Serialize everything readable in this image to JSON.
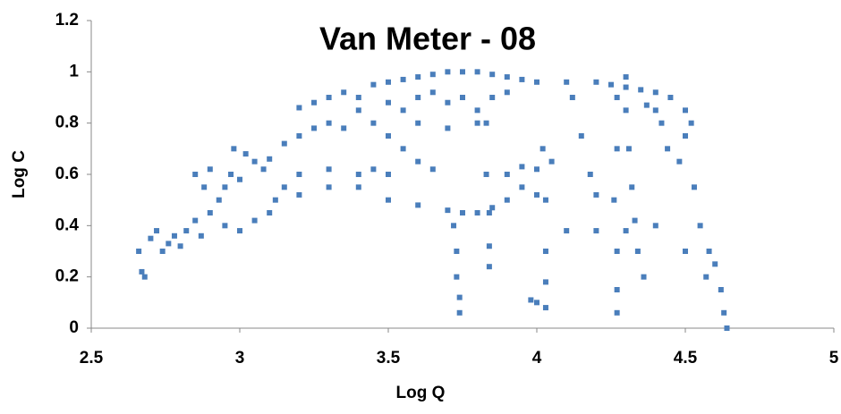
{
  "chart_data": {
    "type": "scatter",
    "title": "Van Meter - 08",
    "x_label": "Log Q",
    "y_label": "Log C",
    "color": "#4a7ebb",
    "x": [
      2.66,
      2.67,
      2.68,
      2.7,
      2.72,
      2.74,
      2.76,
      2.78,
      2.8,
      2.82,
      2.85,
      2.87,
      2.9,
      2.88,
      2.85,
      2.9,
      2.93,
      2.95,
      2.97,
      3.0,
      2.98,
      3.02,
      3.05,
      3.08,
      3.1,
      2.95,
      3.0,
      3.05,
      3.1,
      3.12,
      3.15,
      3.2,
      3.25,
      3.3,
      3.2,
      3.25,
      3.3,
      3.35,
      3.4,
      3.45,
      3.5,
      3.55,
      3.6,
      3.65,
      3.7,
      3.75,
      3.8,
      3.85,
      3.9,
      3.95,
      4.0,
      4.1,
      4.2,
      4.25,
      4.3,
      4.35,
      4.4,
      4.45,
      4.5,
      4.52,
      4.5,
      3.4,
      3.5,
      3.55,
      3.6,
      3.65,
      3.7,
      3.75,
      3.8,
      3.85,
      3.9,
      3.6,
      3.7,
      3.8,
      3.5,
      3.45,
      3.35,
      3.55,
      3.45,
      3.5,
      3.6,
      3.65,
      3.15,
      3.2,
      3.3,
      3.4,
      3.5,
      3.6,
      3.7,
      3.75,
      3.8,
      3.85,
      3.9,
      3.95,
      4.0,
      3.2,
      3.3,
      3.4,
      4.1,
      4.2,
      4.3,
      4.4,
      4.0,
      4.05,
      3.95,
      3.9,
      3.72,
      3.73,
      3.73,
      3.74,
      3.74,
      3.83,
      3.83,
      3.84,
      3.84,
      3.84,
      4.02,
      4.03,
      4.03,
      4.03,
      4.03,
      3.98,
      4.0,
      4.27,
      4.27,
      4.26,
      4.27,
      4.27,
      4.27,
      4.3,
      4.3,
      4.31,
      4.32,
      4.33,
      4.34,
      4.36,
      4.12,
      4.15,
      4.18,
      4.2,
      4.6,
      4.62,
      4.63,
      4.64,
      4.58,
      4.55,
      4.53,
      4.48,
      4.44,
      4.42,
      4.4,
      4.37,
      4.57,
      4.5
    ],
    "values": [
      0.3,
      0.22,
      0.2,
      0.35,
      0.38,
      0.3,
      0.33,
      0.36,
      0.32,
      0.38,
      0.42,
      0.36,
      0.45,
      0.55,
      0.6,
      0.62,
      0.5,
      0.55,
      0.6,
      0.58,
      0.7,
      0.68,
      0.65,
      0.62,
      0.66,
      0.4,
      0.38,
      0.42,
      0.45,
      0.5,
      0.72,
      0.75,
      0.78,
      0.8,
      0.86,
      0.88,
      0.9,
      0.92,
      0.9,
      0.95,
      0.96,
      0.97,
      0.98,
      0.99,
      1.0,
      1.0,
      1.0,
      0.99,
      0.98,
      0.97,
      0.96,
      0.96,
      0.96,
      0.95,
      0.94,
      0.93,
      0.92,
      0.9,
      0.85,
      0.8,
      0.75,
      0.85,
      0.88,
      0.85,
      0.9,
      0.92,
      0.88,
      0.9,
      0.85,
      0.9,
      0.92,
      0.8,
      0.78,
      0.8,
      0.75,
      0.8,
      0.78,
      0.7,
      0.62,
      0.6,
      0.65,
      0.62,
      0.55,
      0.52,
      0.55,
      0.55,
      0.5,
      0.48,
      0.46,
      0.45,
      0.45,
      0.47,
      0.5,
      0.55,
      0.52,
      0.6,
      0.62,
      0.6,
      0.38,
      0.38,
      0.38,
      0.4,
      0.62,
      0.65,
      0.63,
      0.6,
      0.4,
      0.3,
      0.2,
      0.12,
      0.06,
      0.8,
      0.6,
      0.45,
      0.32,
      0.24,
      0.7,
      0.5,
      0.3,
      0.18,
      0.08,
      0.11,
      0.1,
      0.9,
      0.7,
      0.5,
      0.3,
      0.15,
      0.06,
      0.98,
      0.85,
      0.7,
      0.55,
      0.42,
      0.3,
      0.2,
      0.9,
      0.75,
      0.6,
      0.52,
      0.25,
      0.15,
      0.06,
      0.0,
      0.3,
      0.4,
      0.55,
      0.65,
      0.7,
      0.8,
      0.85,
      0.87,
      0.2,
      0.3
    ],
    "xlim": [
      2.5,
      5
    ],
    "ylim": [
      0,
      1.2
    ],
    "xticks": [
      2.5,
      3,
      3.5,
      4,
      4.5,
      5
    ],
    "yticks": [
      0,
      0.2,
      0.4,
      0.6,
      0.8,
      1,
      1.2
    ]
  }
}
